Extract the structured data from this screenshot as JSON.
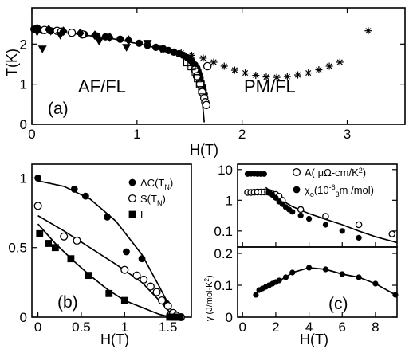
{
  "chart_data": [
    {
      "id": "a",
      "type": "scatter",
      "panel_label": "(a)",
      "xlabel": "H(T)",
      "ylabel": "T(K)",
      "xlim": [
        0,
        3.55
      ],
      "ylim": [
        0,
        2.9
      ],
      "xticks": [
        0,
        1,
        2,
        3
      ],
      "yticks": [
        0,
        1,
        2
      ],
      "region_labels": [
        "AF/FL",
        "PM/FL"
      ],
      "series": [
        {
          "marker": "circle-filled",
          "points": [
            [
              0.02,
              2.37
            ],
            [
              0.1,
              2.34
            ],
            [
              0.18,
              2.33
            ],
            [
              0.5,
              2.24
            ],
            [
              0.62,
              2.2
            ],
            [
              0.7,
              2.18
            ],
            [
              0.84,
              2.12
            ],
            [
              1.02,
              2.02
            ],
            [
              1.1,
              1.97
            ],
            [
              1.18,
              1.92
            ],
            [
              1.25,
              1.88
            ],
            [
              1.3,
              1.84
            ],
            [
              1.35,
              1.8
            ],
            [
              1.4,
              1.76
            ],
            [
              1.44,
              1.72
            ],
            [
              1.48,
              1.66
            ],
            [
              1.52,
              1.58
            ],
            [
              1.55,
              1.48
            ],
            [
              1.57,
              1.4
            ],
            [
              1.58,
              1.33
            ],
            [
              1.59,
              1.25
            ],
            [
              1.6,
              1.15
            ],
            [
              1.61,
              1.05
            ],
            [
              1.62,
              0.95
            ],
            [
              1.63,
              0.85
            ],
            [
              1.64,
              0.75
            ],
            [
              1.64,
              0.65
            ]
          ]
        },
        {
          "marker": "circle-open",
          "points": [
            [
              0.05,
              2.38
            ],
            [
              0.12,
              2.35
            ],
            [
              0.24,
              2.33
            ],
            [
              0.28,
              2.31
            ],
            [
              0.38,
              2.28
            ],
            [
              0.48,
              2.24
            ],
            [
              1.55,
              1.36
            ],
            [
              1.57,
              1.2
            ],
            [
              1.6,
              1.0
            ],
            [
              1.62,
              0.8
            ],
            [
              1.64,
              0.65
            ],
            [
              1.65,
              0.55
            ],
            [
              1.66,
              0.48
            ],
            [
              1.67,
              1.45
            ]
          ]
        },
        {
          "marker": "diamond-filled",
          "points": [
            [
              0.05,
              2.39
            ],
            [
              0.16,
              2.36
            ],
            [
              0.3,
              2.32
            ],
            [
              0.46,
              2.27
            ],
            [
              0.6,
              2.22
            ],
            [
              0.74,
              2.17
            ],
            [
              0.92,
              2.1
            ]
          ]
        },
        {
          "marker": "triangle-down-filled",
          "points": [
            [
              0.05,
              2.3
            ],
            [
              0.1,
              1.88
            ],
            [
              0.18,
              2.32
            ],
            [
              0.27,
              2.22
            ],
            [
              0.64,
              2.07
            ],
            [
              0.9,
              1.92
            ],
            [
              1.1,
              2.02
            ],
            [
              1.23,
              1.88
            ]
          ]
        },
        {
          "marker": "square-open",
          "points": [
            [
              1.48,
              1.55
            ],
            [
              1.52,
              1.45
            ],
            [
              1.56,
              1.3
            ],
            [
              1.58,
              1.15
            ],
            [
              1.6,
              1.0
            ],
            [
              1.62,
              0.85
            ]
          ]
        },
        {
          "marker": "asterisk",
          "points": [
            [
              1.42,
              1.78
            ],
            [
              1.52,
              1.72
            ],
            [
              1.63,
              1.65
            ],
            [
              1.73,
              1.55
            ],
            [
              1.83,
              1.45
            ],
            [
              1.93,
              1.35
            ],
            [
              2.03,
              1.28
            ],
            [
              2.13,
              1.22
            ],
            [
              2.23,
              1.18
            ],
            [
              2.33,
              1.17
            ],
            [
              2.43,
              1.19
            ],
            [
              2.53,
              1.23
            ],
            [
              2.63,
              1.28
            ],
            [
              2.73,
              1.36
            ],
            [
              2.83,
              1.45
            ],
            [
              2.93,
              1.55
            ],
            [
              3.2,
              2.33
            ]
          ]
        }
      ],
      "curve": [
        [
          0,
          2.36
        ],
        [
          0.4,
          2.26
        ],
        [
          0.8,
          2.12
        ],
        [
          1.1,
          1.96
        ],
        [
          1.3,
          1.82
        ],
        [
          1.45,
          1.65
        ],
        [
          1.54,
          1.42
        ],
        [
          1.59,
          1.1
        ],
        [
          1.62,
          0.6
        ],
        [
          1.64,
          0.05
        ]
      ]
    },
    {
      "id": "b",
      "type": "scatter",
      "panel_label": "(b)",
      "xlabel": "H(T)",
      "ylabel": "",
      "xlim": [
        -0.07,
        1.77
      ],
      "ylim": [
        0,
        1.1
      ],
      "xticks": [
        0,
        0.5,
        1,
        1.5
      ],
      "xtick_labels": [
        "0",
        "0.5",
        "1",
        "1.5"
      ],
      "yticks": [
        0,
        0.5,
        1
      ],
      "yticks_labels": [
        "0",
        "0.5",
        "1"
      ],
      "legend_position": "top-right",
      "series": [
        {
          "name": "ΔC(T",
          "name_sub": "N",
          "name_end": ")",
          "marker": "circle-filled",
          "points": [
            [
              0,
              1.0
            ],
            [
              0.42,
              0.92
            ],
            [
              0.55,
              0.87
            ],
            [
              0.8,
              0.72
            ],
            [
              1.02,
              0.47
            ],
            [
              1.2,
              0.42
            ],
            [
              1.48,
              0.1
            ],
            [
              1.55,
              0.03
            ],
            [
              1.6,
              0.0
            ],
            [
              1.64,
              0.0
            ]
          ],
          "curve": [
            [
              0,
              0.98
            ],
            [
              0.3,
              0.94
            ],
            [
              0.6,
              0.85
            ],
            [
              0.9,
              0.69
            ],
            [
              1.2,
              0.45
            ],
            [
              1.4,
              0.22
            ],
            [
              1.5,
              0.1
            ],
            [
              1.58,
              0.0
            ]
          ]
        },
        {
          "name": "S(T",
          "name_sub": "N",
          "name_end": ")",
          "marker": "circle-open",
          "points": [
            [
              0,
              0.8
            ],
            [
              0.3,
              0.58
            ],
            [
              0.45,
              0.55
            ],
            [
              1.0,
              0.34
            ],
            [
              1.14,
              0.3
            ],
            [
              1.22,
              0.27
            ],
            [
              1.3,
              0.22
            ],
            [
              1.37,
              0.18
            ],
            [
              1.43,
              0.12
            ],
            [
              1.5,
              0.08
            ],
            [
              1.56,
              0.03
            ],
            [
              1.6,
              0.01
            ],
            [
              1.65,
              0.0
            ]
          ],
          "curve": [
            [
              0,
              0.73
            ],
            [
              0.3,
              0.62
            ],
            [
              0.6,
              0.5
            ],
            [
              0.9,
              0.38
            ],
            [
              1.2,
              0.25
            ],
            [
              1.4,
              0.12
            ],
            [
              1.5,
              0.05
            ],
            [
              1.56,
              0.0
            ]
          ]
        },
        {
          "name": "L",
          "marker": "square-filled",
          "points": [
            [
              0.02,
              0.6
            ],
            [
              0.12,
              0.53
            ],
            [
              0.2,
              0.5
            ],
            [
              0.38,
              0.42
            ],
            [
              0.58,
              0.3
            ],
            [
              0.82,
              0.17
            ],
            [
              1.0,
              0.12
            ],
            [
              1.52,
              0.0
            ],
            [
              1.56,
              0.0
            ],
            [
              1.6,
              0.0
            ],
            [
              1.64,
              0.0
            ]
          ],
          "curve": [
            [
              0,
              0.67
            ],
            [
              0.2,
              0.53
            ],
            [
              0.4,
              0.41
            ],
            [
              0.6,
              0.3
            ],
            [
              0.8,
              0.2
            ],
            [
              1.0,
              0.12
            ],
            [
              1.2,
              0.07
            ],
            [
              1.4,
              0.02
            ],
            [
              1.53,
              0.0
            ]
          ]
        }
      ]
    },
    {
      "id": "c",
      "type": "scatter",
      "panel_label": "(c)",
      "xlabel": "H(T)",
      "ylabel_upper": "",
      "ylabel_lower": "γ (J/mol-K",
      "ylabel_lower_sup": "2",
      "ylabel_lower_end": ")",
      "upper": {
        "yscale": "log",
        "xlim": [
          -0.3,
          9.3
        ],
        "ylim": [
          0.03,
          15
        ],
        "yticks": [
          0.1,
          1,
          10
        ],
        "ytick_labels": [
          "0.1",
          "1",
          "10"
        ],
        "legend_position": "top-right",
        "series": [
          {
            "name": "A( μΩ-cm/K",
            "name_sup": "2",
            "name_end": ")",
            "marker": "circle-open",
            "points": [
              [
                0.3,
                1.8
              ],
              [
                0.5,
                1.8
              ],
              [
                0.7,
                1.82
              ],
              [
                0.9,
                1.85
              ],
              [
                1.1,
                1.85
              ],
              [
                1.3,
                1.85
              ],
              [
                1.5,
                1.85
              ],
              [
                1.6,
                1.8
              ],
              [
                1.8,
                1.6
              ],
              [
                2.0,
                1.55
              ],
              [
                2.2,
                1.35
              ],
              [
                2.4,
                1.0
              ],
              [
                3.5,
                0.5
              ],
              [
                5.0,
                0.3
              ],
              [
                7.0,
                0.16
              ],
              [
                9.0,
                0.08
              ]
            ]
          },
          {
            "name": "χ",
            "name_sub": "o",
            "name_mid": "(10",
            "name_sup": "-6",
            "name_end": "m /mol)",
            "name_sup2": "3",
            "marker": "circle-filled",
            "points": [
              [
                0.3,
                7.2
              ],
              [
                0.5,
                7.3
              ],
              [
                0.7,
                7.3
              ],
              [
                0.9,
                7.2
              ],
              [
                1.1,
                7.2
              ],
              [
                1.3,
                7.2
              ],
              [
                1.6,
                1.75
              ],
              [
                1.8,
                1.5
              ],
              [
                2.0,
                1.2
              ],
              [
                2.2,
                0.9
              ],
              [
                2.4,
                0.75
              ],
              [
                2.6,
                0.6
              ],
              [
                2.8,
                0.5
              ],
              [
                3.0,
                0.42
              ],
              [
                3.5,
                0.32
              ],
              [
                4.0,
                0.25
              ],
              [
                5.0,
                0.16
              ],
              [
                6.0,
                0.1
              ],
              [
                7.0,
                0.06
              ]
            ]
          }
        ],
        "curve": [
          [
            1.4,
            2.6
          ],
          [
            2.0,
            1.3
          ],
          [
            3.0,
            0.62
          ],
          [
            4.0,
            0.37
          ],
          [
            5.0,
            0.24
          ],
          [
            6.0,
            0.16
          ],
          [
            7.0,
            0.1
          ],
          [
            8.0,
            0.065
          ],
          [
            9.3,
            0.042
          ]
        ]
      },
      "lower": {
        "xlim": [
          -0.3,
          9.3
        ],
        "ylim": [
          0,
          0.22
        ],
        "xticks": [
          0,
          2,
          4,
          6,
          8
        ],
        "yticks": [
          0,
          0.1,
          0.2
        ],
        "ytick_labels": [
          "0",
          "0.1",
          "0.2"
        ],
        "series": [
          {
            "marker": "circle-filled",
            "points": [
              [
                0.8,
                0.07
              ],
              [
                1.0,
                0.085
              ],
              [
                1.2,
                0.09
              ],
              [
                1.4,
                0.095
              ],
              [
                1.6,
                0.1
              ],
              [
                1.8,
                0.105
              ],
              [
                2.0,
                0.11
              ],
              [
                2.2,
                0.115
              ],
              [
                2.6,
                0.125
              ],
              [
                3.0,
                0.14
              ],
              [
                4.0,
                0.155
              ],
              [
                5.0,
                0.15
              ],
              [
                6.0,
                0.135
              ],
              [
                7.0,
                0.125
              ],
              [
                8.0,
                0.105
              ],
              [
                9.2,
                0.07
              ]
            ]
          }
        ]
      }
    }
  ]
}
